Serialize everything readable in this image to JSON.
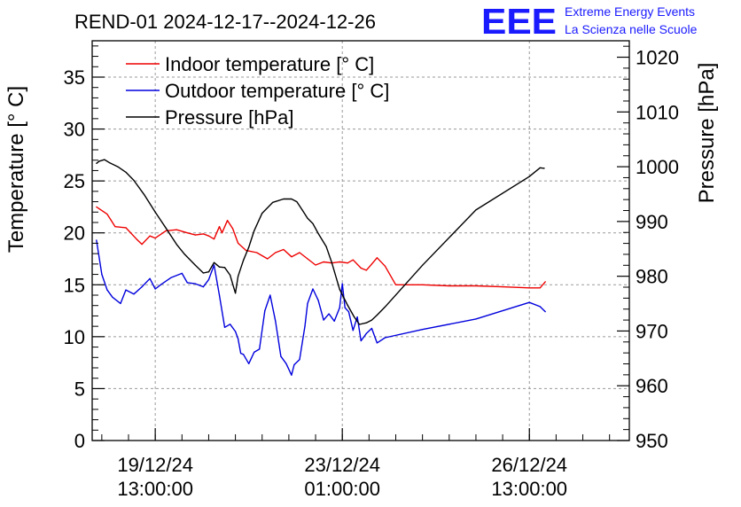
{
  "chart_data": {
    "type": "line",
    "title": "REND-01 2024-12-17--2024-12-26",
    "logo": {
      "text": "EEE",
      "line1": "Extreme Energy Events",
      "line2": "La Scienza nelle Scuole",
      "color": "#1a1aff"
    },
    "ylabel_left": "Temperature [° C]",
    "ylabel_right": "Pressure [hPa]",
    "ylim_left": [
      0,
      38.5
    ],
    "ylim_right": [
      950,
      1023
    ],
    "xlim": [
      -1.18,
      8.87
    ],
    "yticks_left": [
      0,
      5,
      10,
      15,
      20,
      25,
      30,
      35
    ],
    "yticks_right": [
      950,
      960,
      970,
      980,
      990,
      1000,
      1010,
      1020
    ],
    "xticks": [
      {
        "x": 0,
        "date": "19/12/24",
        "time": "13:00:00"
      },
      {
        "x": 3.5,
        "date": "23/12/24",
        "time": "01:00:00"
      },
      {
        "x": 7.0,
        "date": "26/12/24",
        "time": "13:00:00"
      }
    ],
    "grid": true,
    "legend_position": "top-left",
    "x_units": "days since 19/12/24 13:00",
    "series": [
      {
        "name": "Indoor temperature [° C]",
        "color": "#ee0000",
        "axis": "left",
        "x": [
          -1.1,
          -0.9,
          -0.75,
          -0.55,
          -0.35,
          -0.25,
          -0.1,
          0.0,
          0.2,
          0.4,
          0.6,
          0.75,
          0.9,
          1.0,
          1.1,
          1.2,
          1.25,
          1.35,
          1.45,
          1.55,
          1.7,
          1.9,
          2.1,
          2.25,
          2.4,
          2.55,
          2.7,
          2.85,
          3.0,
          3.15,
          3.3,
          3.45,
          3.6,
          3.7,
          3.85,
          3.95,
          4.05,
          4.15,
          4.3,
          4.5,
          5.0,
          5.5,
          6.0,
          6.5,
          7.0,
          7.2,
          7.3
        ],
        "values": [
          22.5,
          21.8,
          20.6,
          20.5,
          19.4,
          18.9,
          19.7,
          19.5,
          20.2,
          20.3,
          20.0,
          19.8,
          19.9,
          19.7,
          19.4,
          20.6,
          20.0,
          21.2,
          20.4,
          19.0,
          18.3,
          18.1,
          17.5,
          18.1,
          18.4,
          17.7,
          18.1,
          17.5,
          16.9,
          17.2,
          17.1,
          17.2,
          17.1,
          17.4,
          16.6,
          16.4,
          17.0,
          17.6,
          16.8,
          15.0,
          15.0,
          14.9,
          14.9,
          14.8,
          14.7,
          14.7,
          15.3
        ]
      },
      {
        "name": "Outdoor temperature [° C]",
        "color": "#0000dd",
        "axis": "left",
        "x": [
          -1.1,
          -1.0,
          -0.9,
          -0.8,
          -0.65,
          -0.55,
          -0.4,
          -0.25,
          -0.1,
          0.0,
          0.1,
          0.3,
          0.5,
          0.6,
          0.75,
          0.9,
          1.0,
          1.1,
          1.2,
          1.3,
          1.4,
          1.5,
          1.55,
          1.6,
          1.65,
          1.75,
          1.85,
          1.95,
          2.05,
          2.15,
          2.25,
          2.35,
          2.45,
          2.55,
          2.6,
          2.7,
          2.8,
          2.85,
          2.95,
          3.05,
          3.15,
          3.25,
          3.35,
          3.45,
          3.5,
          3.55,
          3.62,
          3.7,
          3.78,
          3.85,
          3.95,
          4.05,
          4.15,
          4.3,
          5.0,
          6.0,
          7.0,
          7.2,
          7.3
        ],
        "values": [
          19.3,
          16.0,
          14.5,
          13.8,
          13.2,
          14.5,
          14.1,
          14.8,
          15.6,
          14.6,
          15.0,
          15.7,
          16.1,
          15.2,
          15.1,
          14.8,
          15.5,
          16.9,
          14.0,
          10.9,
          11.2,
          10.5,
          9.8,
          8.4,
          8.3,
          7.4,
          8.5,
          8.8,
          12.5,
          14.0,
          11.5,
          8.1,
          7.4,
          6.3,
          7.3,
          7.8,
          11.0,
          13.2,
          14.6,
          13.5,
          11.6,
          12.2,
          11.5,
          12.8,
          15.1,
          12.8,
          12.4,
          10.6,
          11.9,
          9.6,
          10.3,
          10.8,
          9.4,
          9.9,
          10.7,
          11.7,
          13.3,
          12.9,
          12.4
        ]
      },
      {
        "name": "Pressure [hPa]",
        "color": "#000000",
        "axis": "right",
        "x": [
          -1.1,
          -1.05,
          -0.95,
          -0.85,
          -0.7,
          -0.55,
          -0.4,
          -0.2,
          0.0,
          0.2,
          0.4,
          0.55,
          0.75,
          0.9,
          1.0,
          1.1,
          1.2,
          1.3,
          1.4,
          1.5,
          1.55,
          1.65,
          1.75,
          1.85,
          2.0,
          2.2,
          2.4,
          2.55,
          2.65,
          2.75,
          2.85,
          2.95,
          3.05,
          3.2,
          3.3,
          3.45,
          3.6,
          3.72,
          3.82,
          3.95,
          4.05,
          4.15,
          4.3,
          5.0,
          6.0,
          7.0,
          7.2,
          7.28
        ],
        "values": [
          1000.6,
          1001.0,
          1001.3,
          1000.7,
          1000.0,
          999.0,
          997.5,
          994.8,
          991.7,
          988.8,
          985.8,
          984.0,
          982.0,
          980.6,
          980.8,
          982.5,
          981.7,
          981.6,
          980.2,
          976.9,
          980.0,
          982.9,
          985.3,
          988.3,
          991.5,
          993.5,
          994.1,
          994.1,
          993.6,
          992.1,
          990.6,
          989.6,
          987.8,
          985.4,
          982.6,
          977.6,
          974.7,
          972.6,
          971.2,
          971.5,
          972.0,
          972.9,
          974.4,
          982.0,
          992.1,
          998.2,
          999.8,
          999.7
        ]
      }
    ]
  }
}
